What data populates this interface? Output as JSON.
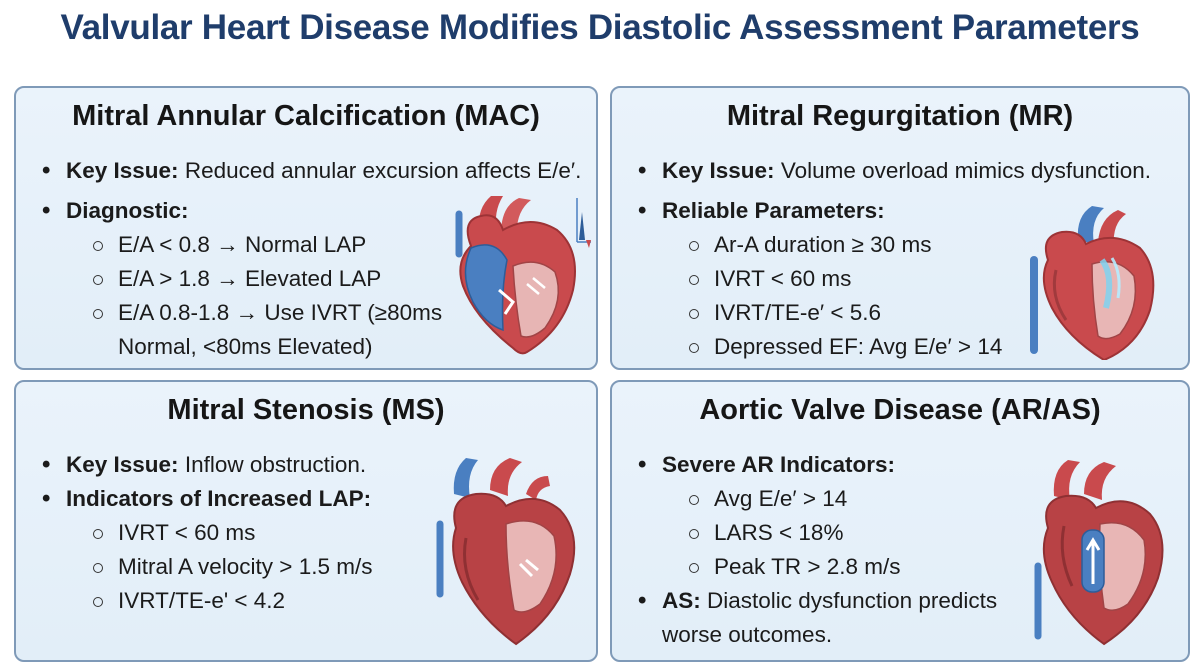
{
  "title": "Valvular Heart Disease Modifies Diastolic Assessment Parameters",
  "panels": {
    "mac": {
      "title": "Mitral Annular Calcification (MAC)",
      "key_issue_label": "Key Issue:",
      "key_issue_text": "Reduced annular excursion affects E/e′.",
      "diagnostic_label": "Diagnostic:",
      "items": [
        "E/A < 0.8 → Normal LAP",
        "E/A > 1.8 → Elevated LAP",
        "E/A 0.8-1.8 → Use IVRT (≥80ms"
      ],
      "item_continuation": "Normal, <80ms Elevated)"
    },
    "mr": {
      "title": "Mitral Regurgitation (MR)",
      "key_issue_label": "Key Issue:",
      "key_issue_text": "Volume overload mimics dysfunction.",
      "params_label": "Reliable Parameters:",
      "items": [
        "Ar-A duration ≥ 30 ms",
        "IVRT < 60 ms",
        "IVRT/TE-e′ < 5.6",
        "Depressed EF: Avg E/e′ > 14"
      ]
    },
    "ms": {
      "title": "Mitral Stenosis (MS)",
      "key_issue_label": "Key Issue:",
      "key_issue_text": "Inflow obstruction.",
      "indicators_label": "Indicators of Increased LAP:",
      "items": [
        "IVRT < 60 ms",
        "Mitral A velocity > 1.5 m/s",
        "IVRT/TE-e' < 4.2"
      ]
    },
    "av": {
      "title": "Aortic Valve Disease (AR/AS)",
      "ar_label": "Severe AR Indicators:",
      "items": [
        "Avg E/e′ > 14",
        "LARS < 18%",
        "Peak TR > 2.8 m/s"
      ],
      "as_label": "AS:",
      "as_text": "Diastolic dysfunction predicts",
      "as_text_cont": "worse outcomes."
    }
  },
  "colors": {
    "title": "#1f3d6b",
    "panel_border": "#7f9ab8",
    "panel_bg": "#e6f0f9",
    "heart_red": "#c94a4d",
    "heart_blue": "#4a7fc1"
  }
}
